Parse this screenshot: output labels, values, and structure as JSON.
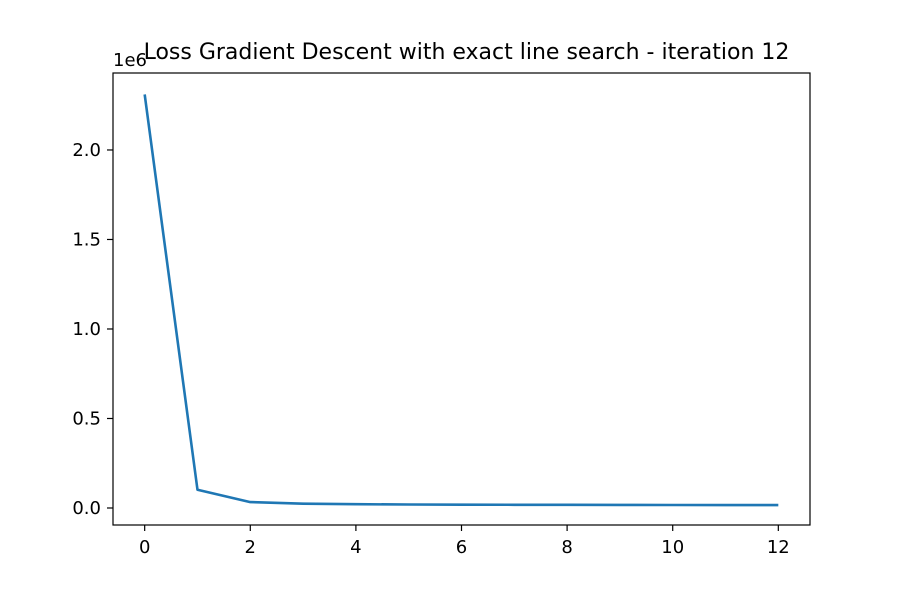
{
  "chart_data": {
    "type": "line",
    "title": "Loss Gradient Descent with exact line search - iteration 12",
    "xlabel": "",
    "ylabel": "",
    "y_offset_label": "1e6",
    "xlim": [
      -0.6,
      12.6
    ],
    "ylim": [
      -0.095,
      2.43
    ],
    "xticks": [
      0,
      2,
      4,
      6,
      8,
      10,
      12
    ],
    "xtick_labels": [
      "0",
      "2",
      "4",
      "6",
      "8",
      "10",
      "12"
    ],
    "yticks": [
      0.0,
      0.5,
      1.0,
      1.5,
      2.0
    ],
    "ytick_labels": [
      "0.0",
      "0.5",
      "1.0",
      "1.5",
      "2.0"
    ],
    "grid": false,
    "series": [
      {
        "color": "#1f77b4",
        "x": [
          0,
          1,
          2,
          3,
          4,
          5,
          6,
          7,
          8,
          9,
          10,
          11,
          12
        ],
        "y": [
          2.31,
          0.102,
          0.033,
          0.024,
          0.021,
          0.0195,
          0.0185,
          0.018,
          0.0175,
          0.017,
          0.0167,
          0.0164,
          0.0161
        ]
      }
    ]
  }
}
